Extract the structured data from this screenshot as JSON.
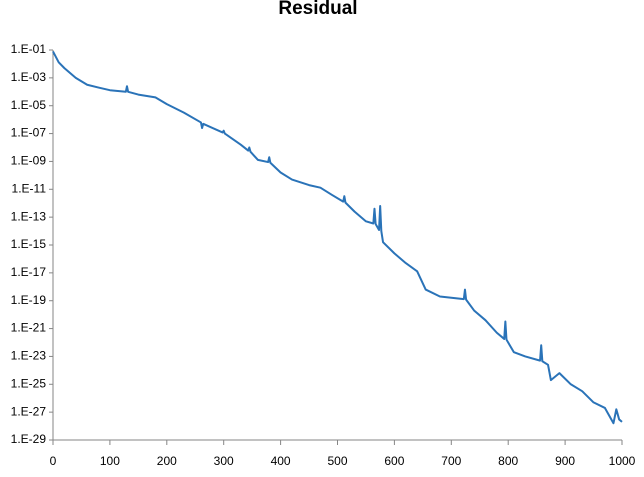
{
  "chart_data": {
    "type": "line",
    "title": "Residual",
    "log_y": true,
    "color": "#2a73b8",
    "x": [
      0,
      10,
      20,
      40,
      60,
      80,
      100,
      128,
      130,
      132,
      150,
      180,
      200,
      230,
      260,
      262,
      264,
      298,
      300,
      302,
      330,
      343,
      345,
      347,
      360,
      378,
      380,
      382,
      400,
      420,
      450,
      470,
      490,
      510,
      512,
      514,
      530,
      550,
      563,
      565,
      567,
      573,
      575,
      577,
      580,
      600,
      620,
      640,
      655,
      680,
      722,
      724,
      726,
      740,
      760,
      780,
      793,
      795,
      797,
      810,
      830,
      856,
      858,
      860,
      870,
      875,
      890,
      910,
      930,
      950,
      970,
      985,
      990,
      995,
      1000
    ],
    "values": [
      0.079,
      0.013,
      0.005,
      0.001,
      0.00032,
      0.0002,
      0.00013,
      0.0001,
      0.00025,
      0.0001,
      6.3e-05,
      4e-05,
      1.3e-05,
      3.2e-06,
      6.3e-07,
      2.5e-07,
      5e-07,
      1.2e-07,
      1.6e-07,
      1e-07,
      1.6e-08,
      6e-09,
      1e-08,
      5e-09,
      1.3e-09,
      9e-10,
      2e-09,
      8e-10,
      1.6e-10,
      5e-11,
      2e-11,
      1.3e-11,
      4e-12,
      1.3e-12,
      3.2e-12,
      1.1e-12,
      2.5e-13,
      5e-14,
      3.5e-14,
      4e-13,
      3.2e-14,
      1.2e-14,
      6.3e-13,
      1e-14,
      1.6e-15,
      2.5e-16,
      5e-17,
      1.3e-17,
      6.3e-19,
      2e-19,
      1.3e-19,
      6.3e-19,
      1.2e-19,
      2e-20,
      4e-21,
      5e-22,
      1.8e-22,
      3.2e-21,
      1.6e-22,
      2e-23,
      1e-23,
      5e-24,
      6.3e-23,
      4.5e-24,
      2.5e-24,
      2e-25,
      6.3e-25,
      1e-25,
      3.2e-26,
      5e-27,
      2e-27,
      1.6e-28,
      1.6e-27,
      3e-28,
      2e-28
    ],
    "xlim": [
      0,
      1000
    ],
    "xticks": [
      0,
      100,
      200,
      300,
      400,
      500,
      600,
      700,
      800,
      900,
      1000
    ],
    "ylim": [
      1e-29,
      0.1
    ],
    "yticks": [
      {
        "value": 1e-29,
        "label": "1.E-29"
      },
      {
        "value": 1e-27,
        "label": "1.E-27"
      },
      {
        "value": 1e-25,
        "label": "1.E-25"
      },
      {
        "value": 1e-23,
        "label": "1.E-23"
      },
      {
        "value": 1e-21,
        "label": "1.E-21"
      },
      {
        "value": 1e-19,
        "label": "1.E-19"
      },
      {
        "value": 1e-17,
        "label": "1.E-17"
      },
      {
        "value": 1e-15,
        "label": "1.E-15"
      },
      {
        "value": 1e-13,
        "label": "1.E-13"
      },
      {
        "value": 1e-11,
        "label": "1.E-11"
      },
      {
        "value": 1e-09,
        "label": "1.E-09"
      },
      {
        "value": 1e-07,
        "label": "1.E-07"
      },
      {
        "value": 1e-05,
        "label": "1.E-05"
      },
      {
        "value": 0.001,
        "label": "1.E-03"
      },
      {
        "value": 0.1,
        "label": "1.E-01"
      }
    ],
    "grid": false
  }
}
